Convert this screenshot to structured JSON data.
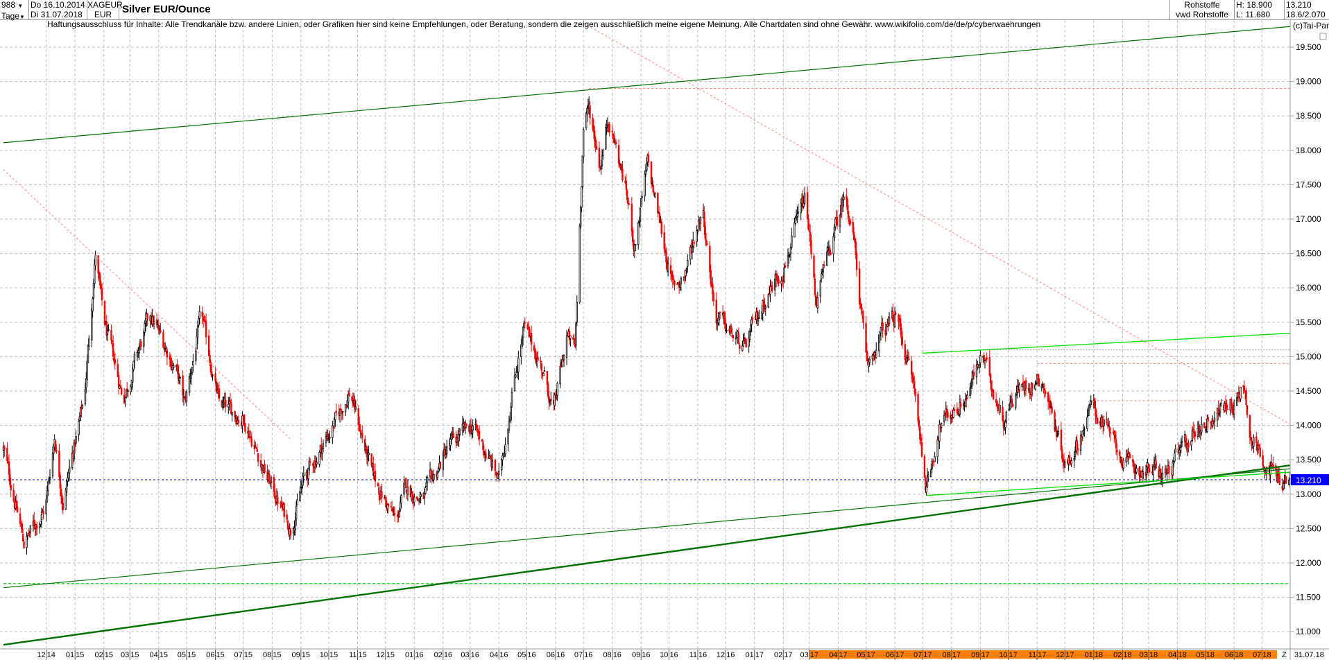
{
  "header": {
    "bar_count": "988",
    "period": "Tage",
    "start_date": "Do 16.10.2014",
    "end_date": "Di 31.07.2018",
    "symbol": "XAGEUR",
    "currency": "EUR",
    "title": "Silver EUR/Ounce",
    "market": "Rohstoffe",
    "source": "vwd Rohstoffe",
    "high": "H: 18.900",
    "low": "L: 11.680",
    "last": "13.210",
    "range": "18.6/2.070"
  },
  "disclaimer": "Haftungsausschluss für Inhalte: Alle Trendkanäle bzw. andere Linien, oder Grafiken hier sind keine Empfehlungen, oder Beratung, sondern die zeigen ausschließlich meine eigene Meinung. Alle Chartdaten sind ohne Gewähr.  www.wikifolio.com/de/de/p/cyberwaehrungen",
  "copyright": "(c)Tai-Pan",
  "footer": {
    "z_label": "Z",
    "end_label": "31.07.18"
  },
  "colors": {
    "up": "#000000",
    "down": "#ff0000",
    "trend_dark": "#007000",
    "trend_light": "#00e000",
    "resistance": "#ff8080",
    "current": "#0000ff",
    "axis_highlight": "#ff8000",
    "price_box": "#0000ff"
  },
  "chart_data": {
    "type": "candlestick",
    "title": "Silver EUR/Ounce",
    "xlim": [
      "2014-10-16",
      "2018-07-31"
    ],
    "ylim": [
      10.8,
      19.9
    ],
    "grid": true,
    "y_ticks": [
      "11.000",
      "11.500",
      "12.000",
      "12.500",
      "13.000",
      "13.500",
      "14.000",
      "14.500",
      "15.000",
      "15.500",
      "16.000",
      "16.500",
      "17.000",
      "17.500",
      "18.000",
      "18.500",
      "19.000",
      "19.500"
    ],
    "x_ticks": [
      {
        "m": "12",
        "y": "14",
        "date": "2014-12-01"
      },
      {
        "m": "01",
        "y": "15",
        "date": "2015-01-01"
      },
      {
        "m": "02",
        "y": "15",
        "date": "2015-02-01"
      },
      {
        "m": "03",
        "y": "15",
        "date": "2015-03-01"
      },
      {
        "m": "04",
        "y": "15",
        "date": "2015-04-01"
      },
      {
        "m": "05",
        "y": "15",
        "date": "2015-05-01"
      },
      {
        "m": "06",
        "y": "15",
        "date": "2015-06-01"
      },
      {
        "m": "07",
        "y": "15",
        "date": "2015-07-01"
      },
      {
        "m": "08",
        "y": "15",
        "date": "2015-08-01"
      },
      {
        "m": "09",
        "y": "15",
        "date": "2015-09-01"
      },
      {
        "m": "10",
        "y": "15",
        "date": "2015-10-01"
      },
      {
        "m": "11",
        "y": "15",
        "date": "2015-11-01"
      },
      {
        "m": "12",
        "y": "15",
        "date": "2015-12-01"
      },
      {
        "m": "01",
        "y": "16",
        "date": "2016-01-01"
      },
      {
        "m": "02",
        "y": "16",
        "date": "2016-02-01"
      },
      {
        "m": "03",
        "y": "16",
        "date": "2016-03-01"
      },
      {
        "m": "04",
        "y": "16",
        "date": "2016-04-01"
      },
      {
        "m": "05",
        "y": "16",
        "date": "2016-05-01"
      },
      {
        "m": "06",
        "y": "16",
        "date": "2016-06-01"
      },
      {
        "m": "07",
        "y": "16",
        "date": "2016-07-01"
      },
      {
        "m": "08",
        "y": "16",
        "date": "2016-08-01"
      },
      {
        "m": "09",
        "y": "16",
        "date": "2016-09-01"
      },
      {
        "m": "10",
        "y": "16",
        "date": "2016-10-01"
      },
      {
        "m": "11",
        "y": "16",
        "date": "2016-11-01"
      },
      {
        "m": "12",
        "y": "16",
        "date": "2016-12-01"
      },
      {
        "m": "01",
        "y": "17",
        "date": "2017-01-01"
      },
      {
        "m": "02",
        "y": "17",
        "date": "2017-02-01"
      },
      {
        "m": "03",
        "y": "17",
        "date": "2017-03-01",
        "hl": true
      },
      {
        "m": "04",
        "y": "17",
        "date": "2017-04-01",
        "hl": true
      },
      {
        "m": "05",
        "y": "17",
        "date": "2017-05-01",
        "hl": true
      },
      {
        "m": "06",
        "y": "17",
        "date": "2017-06-01",
        "hl": true
      },
      {
        "m": "07",
        "y": "17",
        "date": "2017-07-01",
        "hl": true
      },
      {
        "m": "08",
        "y": "17",
        "date": "2017-08-01",
        "hl": true
      },
      {
        "m": "09",
        "y": "17",
        "date": "2017-09-01",
        "hl": true
      },
      {
        "m": "10",
        "y": "17",
        "date": "2017-10-01",
        "hl": true
      },
      {
        "m": "11",
        "y": "17",
        "date": "2017-11-01",
        "hl": true
      },
      {
        "m": "12",
        "y": "17",
        "date": "2017-12-01",
        "hl": true
      },
      {
        "m": "01",
        "y": "18",
        "date": "2018-01-01",
        "hl": true
      },
      {
        "m": "02",
        "y": "18",
        "date": "2018-02-01",
        "hl": true
      },
      {
        "m": "03",
        "y": "18",
        "date": "2018-03-01",
        "hl": true
      },
      {
        "m": "04",
        "y": "18",
        "date": "2018-04-01",
        "hl": true
      },
      {
        "m": "05",
        "y": "18",
        "date": "2018-05-01",
        "hl": true
      },
      {
        "m": "06",
        "y": "18",
        "date": "2018-06-01",
        "hl": true
      },
      {
        "m": "07",
        "y": "18",
        "date": "2018-07-01",
        "hl": true
      }
    ],
    "price_path": [
      [
        "2014-10-16",
        13.65
      ],
      [
        "2014-11-07",
        12.3
      ],
      [
        "2014-11-30",
        12.8
      ],
      [
        "2014-12-10",
        13.85
      ],
      [
        "2014-12-19",
        12.9
      ],
      [
        "2015-01-11",
        14.4
      ],
      [
        "2015-01-23",
        16.5
      ],
      [
        "2015-02-01",
        15.5
      ],
      [
        "2015-02-22",
        14.4
      ],
      [
        "2015-03-23",
        15.6
      ],
      [
        "2015-04-20",
        14.8
      ],
      [
        "2015-04-29",
        14.3
      ],
      [
        "2015-05-17",
        15.6
      ],
      [
        "2015-06-05",
        14.3
      ],
      [
        "2015-07-02",
        14.1
      ],
      [
        "2015-07-25",
        13.3
      ],
      [
        "2015-08-21",
        12.5
      ],
      [
        "2015-09-04",
        13.2
      ],
      [
        "2015-10-06",
        14.0
      ],
      [
        "2015-10-24",
        14.5
      ],
      [
        "2015-11-16",
        13.3
      ],
      [
        "2015-12-12",
        12.6
      ],
      [
        "2015-12-23",
        13.1
      ],
      [
        "2016-01-10",
        12.9
      ],
      [
        "2016-02-07",
        13.7
      ],
      [
        "2016-03-04",
        14.0
      ],
      [
        "2016-04-01",
        13.2
      ],
      [
        "2016-04-19",
        14.8
      ],
      [
        "2016-04-28",
        15.4
      ],
      [
        "2016-05-16",
        14.9
      ],
      [
        "2016-05-30",
        14.2
      ],
      [
        "2016-06-13",
        15.3
      ],
      [
        "2016-06-22",
        15.1
      ],
      [
        "2016-07-01",
        18.35
      ],
      [
        "2016-07-07",
        18.6
      ],
      [
        "2016-07-19",
        17.8
      ],
      [
        "2016-07-28",
        18.5
      ],
      [
        "2016-08-16",
        17.4
      ],
      [
        "2016-08-25",
        16.6
      ],
      [
        "2016-09-08",
        17.8
      ],
      [
        "2016-09-22",
        16.9
      ],
      [
        "2016-10-05",
        16.0
      ],
      [
        "2016-10-18",
        16.2
      ],
      [
        "2016-11-06",
        17.2
      ],
      [
        "2016-11-20",
        15.6
      ],
      [
        "2016-12-21",
        15.1
      ],
      [
        "2017-01-14",
        15.9
      ],
      [
        "2017-02-01",
        16.3
      ],
      [
        "2017-02-25",
        17.3
      ],
      [
        "2017-03-08",
        15.8
      ],
      [
        "2017-03-26",
        16.7
      ],
      [
        "2017-04-09",
        17.4
      ],
      [
        "2017-04-18",
        16.7
      ],
      [
        "2017-05-02",
        14.8
      ],
      [
        "2017-05-16",
        15.3
      ],
      [
        "2017-06-03",
        15.6
      ],
      [
        "2017-06-21",
        14.6
      ],
      [
        "2017-07-05",
        13.1
      ],
      [
        "2017-07-19",
        14.0
      ],
      [
        "2017-08-16",
        14.4
      ],
      [
        "2017-09-03",
        15.0
      ],
      [
        "2017-09-26",
        14.1
      ],
      [
        "2017-10-09",
        14.5
      ],
      [
        "2017-11-06",
        14.7
      ],
      [
        "2017-12-03",
        13.4
      ],
      [
        "2017-12-31",
        14.3
      ],
      [
        "2018-02-06",
        13.4
      ],
      [
        "2018-03-21",
        13.3
      ],
      [
        "2018-04-18",
        13.9
      ],
      [
        "2018-05-15",
        14.2
      ],
      [
        "2018-06-07",
        14.4
      ],
      [
        "2018-06-09",
        14.85
      ],
      [
        "2018-06-20",
        13.8
      ],
      [
        "2018-07-18",
        13.2
      ],
      [
        "2018-07-31",
        13.21
      ]
    ],
    "trend_lines": [
      {
        "from": [
          "2014-10-16",
          18.11
        ],
        "to": [
          "2018-07-31",
          19.8
        ],
        "style": "dark"
      },
      {
        "from": [
          "2014-10-16",
          10.81
        ],
        "to": [
          "2018-07-31",
          13.42
        ],
        "style": "dark-thick"
      },
      {
        "from": [
          "2014-10-16",
          11.64
        ],
        "to": [
          "2018-07-31",
          13.37
        ],
        "style": "dark"
      },
      {
        "from": [
          "2017-07-05",
          12.98
        ],
        "to": [
          "2018-07-31",
          13.32
        ],
        "style": "light"
      },
      {
        "from": [
          "2017-07-01",
          15.05
        ],
        "to": [
          "2018-07-31",
          15.34
        ],
        "style": "light"
      },
      {
        "from": [
          "2014-10-16",
          17.72
        ],
        "to": [
          "2015-08-21",
          13.8
        ],
        "style": "resistance-dotted"
      },
      {
        "from": [
          "2016-07-01",
          19.85
        ],
        "to": [
          "2018-07-31",
          14.02
        ],
        "style": "resistance-dotted"
      }
    ],
    "horizontal_lines": [
      {
        "price": 18.9,
        "from": "2016-07-07",
        "style": "resistance-dotted"
      },
      {
        "price": 14.9,
        "from": "2017-11-01",
        "style": "resistance-dotted"
      },
      {
        "price": 14.36,
        "from": "2017-12-31",
        "to": "2018-06-09",
        "style": "resistance-dotted"
      },
      {
        "price": 15.1,
        "from": "2017-09-01",
        "style": "grey-dotted"
      },
      {
        "price": 13.0,
        "from": "2017-07-05",
        "style": "grey-dotted"
      },
      {
        "price": 11.7,
        "from": "2014-10-16",
        "style": "light-dashed"
      },
      {
        "price": 13.21,
        "from": "2014-10-16",
        "style": "current-dotted"
      }
    ],
    "last_price": "13.210"
  }
}
